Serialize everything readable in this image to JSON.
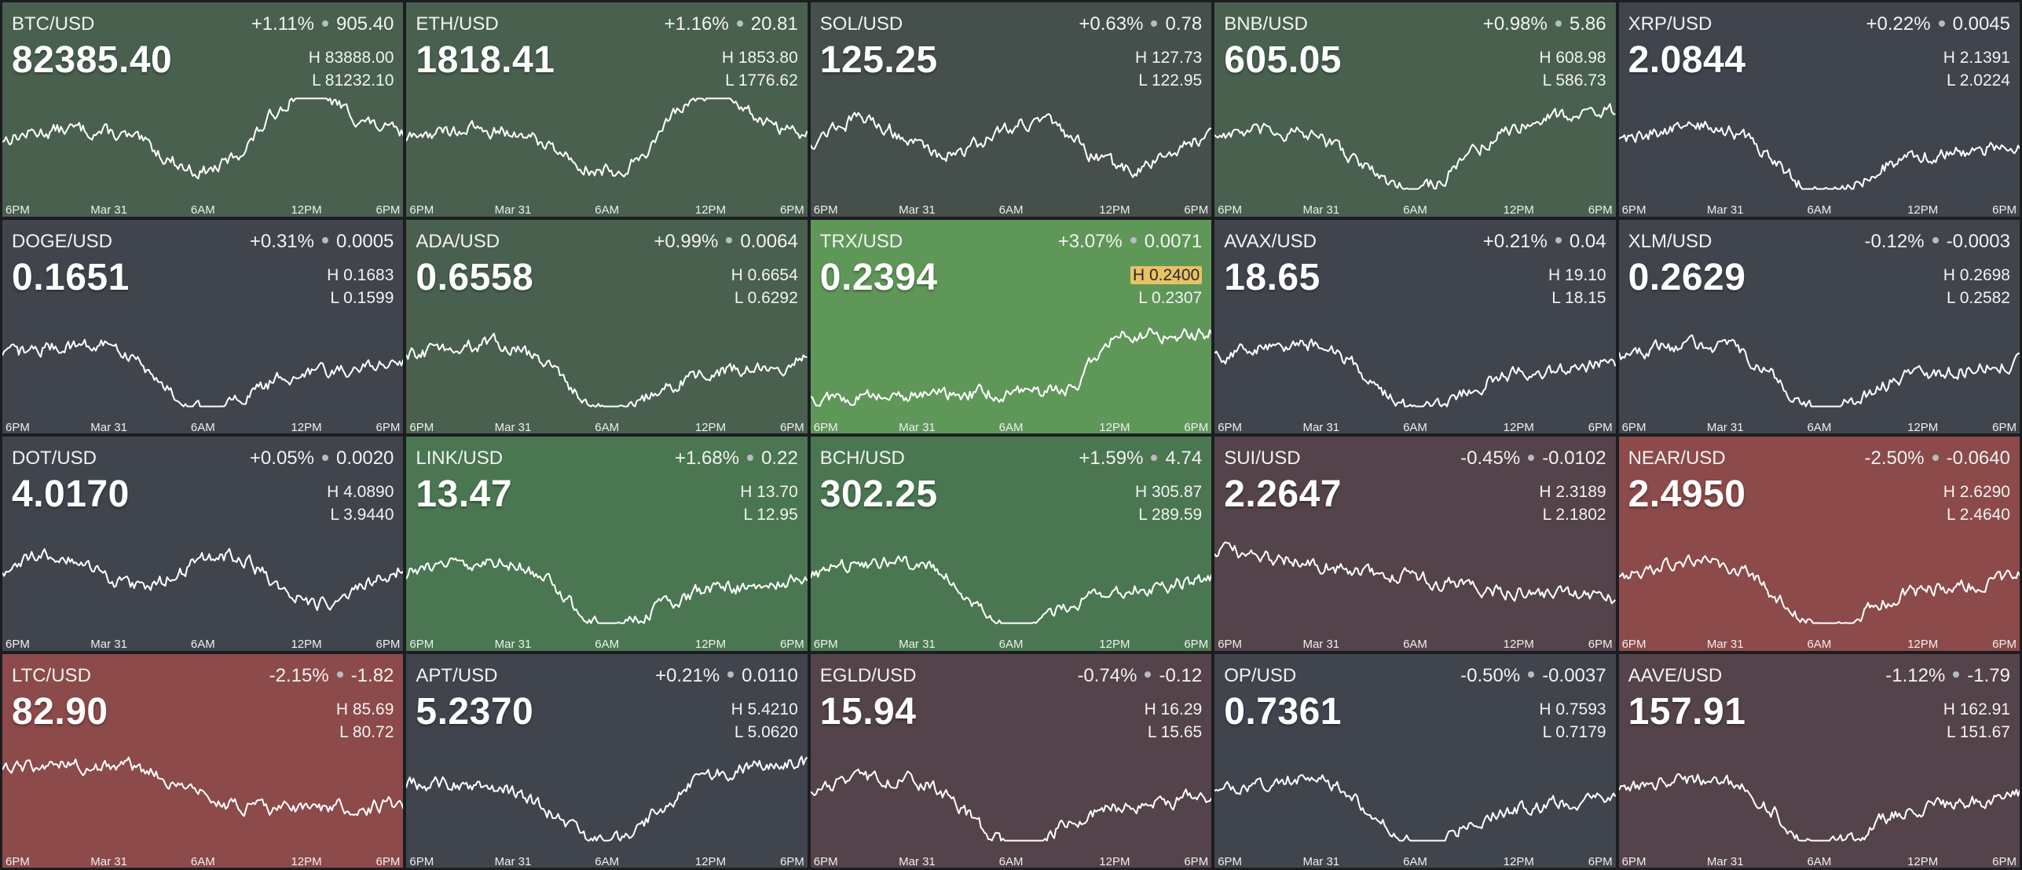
{
  "axis_ticks": [
    "6PM",
    "Mar 31",
    "6AM",
    "12PM",
    "6PM"
  ],
  "colors": {
    "neutral": "#40454d",
    "green_light": "#49604f",
    "green_mid": "#4a7751",
    "green_strong": "#5f9759",
    "red_light": "#54434a",
    "red_strong": "#8c4a4a"
  },
  "tiles": [
    {
      "symbol": "BTC/USD",
      "pct": "+1.11%",
      "abs": "905.40",
      "price": "82385.40",
      "high": "H 83888.00",
      "low": "L 81232.10",
      "color": "#49604f",
      "shape": "btc"
    },
    {
      "symbol": "ETH/USD",
      "pct": "+1.16%",
      "abs": "20.81",
      "price": "1818.41",
      "high": "H 1853.80",
      "low": "L 1776.62",
      "color": "#49604f",
      "shape": "btc"
    },
    {
      "symbol": "SOL/USD",
      "pct": "+0.63%",
      "abs": "0.78",
      "price": "125.25",
      "high": "H 127.73",
      "low": "L 122.95",
      "color": "#454f4b",
      "shape": "wave"
    },
    {
      "symbol": "BNB/USD",
      "pct": "+0.98%",
      "abs": "5.86",
      "price": "605.05",
      "high": "H 608.98",
      "low": "L 586.73",
      "color": "#49604f",
      "shape": "vup"
    },
    {
      "symbol": "XRP/USD",
      "pct": "+0.22%",
      "abs": "0.0045",
      "price": "2.0844",
      "high": "H 2.1391",
      "low": "L 2.0224",
      "color": "#40454d",
      "shape": "vmid"
    },
    {
      "symbol": "DOGE/USD",
      "pct": "+0.31%",
      "abs": "0.0005",
      "price": "0.1651",
      "high": "H 0.1683",
      "low": "L 0.1599",
      "color": "#40454d",
      "shape": "vmid"
    },
    {
      "symbol": "ADA/USD",
      "pct": "+0.99%",
      "abs": "0.0064",
      "price": "0.6558",
      "high": "H 0.6654",
      "low": "L 0.6292",
      "color": "#49604f",
      "shape": "vmid"
    },
    {
      "symbol": "TRX/USD",
      "pct": "+3.07%",
      "abs": "0.0071",
      "price": "0.2394",
      "high": "H 0.2400",
      "low": "L 0.2307",
      "color": "#5f9759",
      "shape": "rise",
      "high_hilite": true
    },
    {
      "symbol": "AVAX/USD",
      "pct": "+0.21%",
      "abs": "0.04",
      "price": "18.65",
      "high": "H 19.10",
      "low": "L 18.15",
      "color": "#40454d",
      "shape": "vmid"
    },
    {
      "symbol": "XLM/USD",
      "pct": "-0.12%",
      "abs": "-0.0003",
      "price": "0.2629",
      "high": "H 0.2698",
      "low": "L 0.2582",
      "color": "#40454d",
      "shape": "vmid"
    },
    {
      "symbol": "DOT/USD",
      "pct": "+0.05%",
      "abs": "0.0020",
      "price": "4.0170",
      "high": "H 4.0890",
      "low": "L 3.9440",
      "color": "#40454d",
      "shape": "wave"
    },
    {
      "symbol": "LINK/USD",
      "pct": "+1.68%",
      "abs": "0.22",
      "price": "13.47",
      "high": "H 13.70",
      "low": "L 12.95",
      "color": "#4a7751",
      "shape": "vmid"
    },
    {
      "symbol": "BCH/USD",
      "pct": "+1.59%",
      "abs": "4.74",
      "price": "302.25",
      "high": "H 305.87",
      "low": "L 289.59",
      "color": "#4a7751",
      "shape": "vmid"
    },
    {
      "symbol": "SUI/USD",
      "pct": "-0.45%",
      "abs": "-0.0102",
      "price": "2.2647",
      "high": "H 2.3189",
      "low": "L 2.1802",
      "color": "#54434a",
      "shape": "fall"
    },
    {
      "symbol": "NEAR/USD",
      "pct": "-2.50%",
      "abs": "-0.0640",
      "price": "2.4950",
      "high": "H 2.6290",
      "low": "L 2.4640",
      "color": "#8c4a4a",
      "shape": "vmid"
    },
    {
      "symbol": "LTC/USD",
      "pct": "-2.15%",
      "abs": "-1.82",
      "price": "82.90",
      "high": "H 85.69",
      "low": "L 80.72",
      "color": "#8c4a4a",
      "shape": "drop"
    },
    {
      "symbol": "APT/USD",
      "pct": "+0.21%",
      "abs": "0.0110",
      "price": "5.2370",
      "high": "H 5.4210",
      "low": "L 5.0620",
      "color": "#40454d",
      "shape": "vup"
    },
    {
      "symbol": "EGLD/USD",
      "pct": "-0.74%",
      "abs": "-0.12",
      "price": "15.94",
      "high": "H 16.29",
      "low": "L 15.65",
      "color": "#54434a",
      "shape": "vmid"
    },
    {
      "symbol": "OP/USD",
      "pct": "-0.50%",
      "abs": "-0.0037",
      "price": "0.7361",
      "high": "H 0.7593",
      "low": "L 0.7179",
      "color": "#40454d",
      "shape": "vmid"
    },
    {
      "symbol": "AAVE/USD",
      "pct": "-1.12%",
      "abs": "-1.79",
      "price": "157.91",
      "high": "H 162.91",
      "low": "L 151.67",
      "color": "#54434a",
      "shape": "vmid"
    }
  ]
}
